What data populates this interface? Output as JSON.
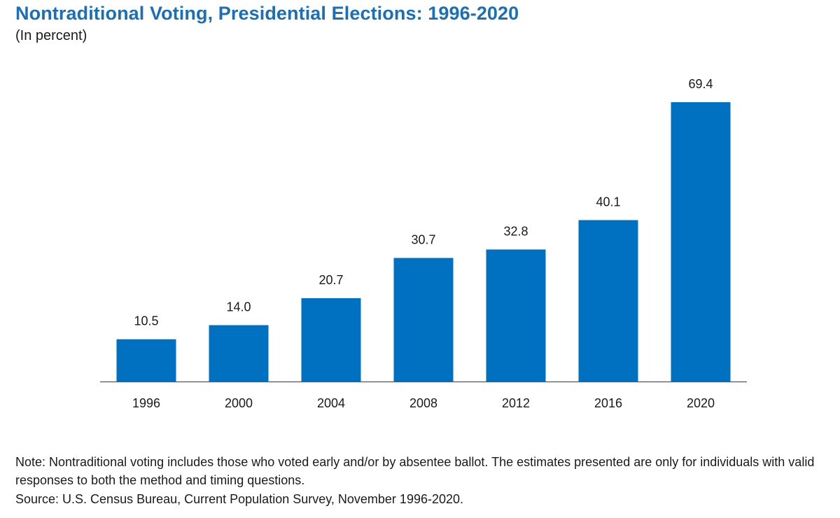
{
  "chart_data": {
    "type": "bar",
    "title": "Nontraditional Voting, Presidential Elections: 1996-2020",
    "subtitle": "(In percent)",
    "categories": [
      "1996",
      "2000",
      "2004",
      "2008",
      "2012",
      "2016",
      "2020"
    ],
    "values": [
      10.5,
      14.0,
      20.7,
      30.7,
      32.8,
      40.1,
      69.4
    ],
    "value_labels": [
      "10.5",
      "14.0",
      "20.7",
      "30.7",
      "32.8",
      "40.1",
      "69.4"
    ],
    "xlabel": "",
    "ylabel": "",
    "ylim": [
      0,
      69.4
    ],
    "grid": false,
    "bar_color": "#0070c0"
  },
  "note": "Note: Nontraditional voting includes those who voted early and/or by absentee ballot. The estimates presented are only for individuals with valid responses to both the method and timing questions.",
  "source": "Source: U.S. Census Bureau, Current Population Survey, November 1996-2020."
}
